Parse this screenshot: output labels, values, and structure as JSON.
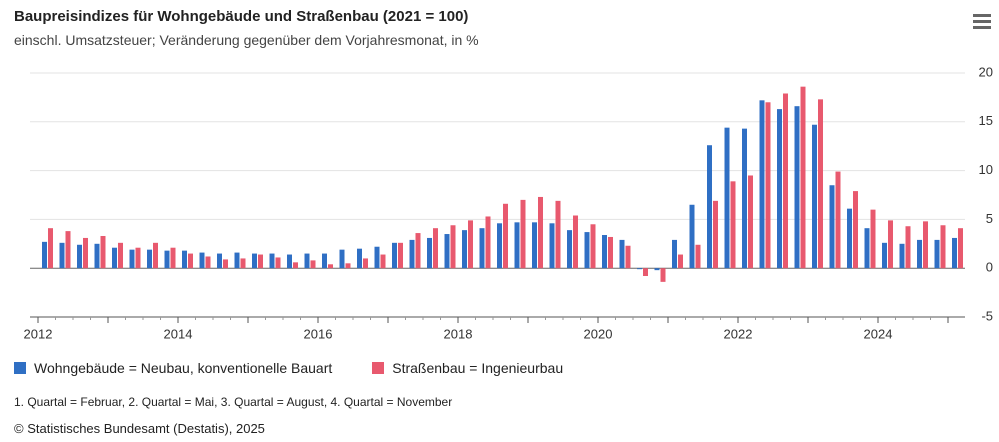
{
  "chart_data": {
    "type": "bar",
    "title": "Baupreisindizes für Wohngebäude und Straßenbau (2021 = 100)",
    "subtitle": "einschl. Umsatzsteuer; Veränderung gegenüber dem Vorjahresmonat, in %",
    "note": "1. Quartal = Februar, 2. Quartal = Mai, 3. Quartal = August, 4. Quartal = November",
    "source": "© Statistisches Bundesamt (Destatis), 2025",
    "categories": [
      "2012",
      null,
      null,
      null,
      null,
      null,
      null,
      null,
      "2014",
      null,
      null,
      null,
      null,
      null,
      null,
      null,
      "2016",
      null,
      null,
      null,
      null,
      null,
      null,
      null,
      "2018",
      null,
      null,
      null,
      null,
      null,
      null,
      null,
      "2020",
      null,
      null,
      null,
      null,
      null,
      null,
      null,
      "2022",
      null,
      null,
      null,
      null,
      null,
      null,
      null,
      "2024",
      null,
      null,
      null,
      null
    ],
    "series": [
      {
        "name": "Wohngebäude = Neubau, konventionelle Bauart",
        "color": "#2f6fc4",
        "values": [
          2.7,
          2.6,
          2.4,
          2.5,
          2.1,
          1.9,
          1.9,
          1.8,
          1.8,
          1.6,
          1.5,
          1.6,
          1.5,
          1.5,
          1.4,
          1.5,
          1.5,
          1.9,
          2.0,
          2.2,
          2.6,
          2.9,
          3.1,
          3.5,
          3.9,
          4.1,
          4.6,
          4.7,
          4.7,
          4.6,
          3.9,
          3.7,
          3.4,
          2.9,
          -0.1,
          -0.2,
          2.9,
          6.5,
          12.6,
          14.4,
          14.3,
          17.2,
          16.3,
          16.6,
          14.7,
          8.5,
          6.1,
          4.1,
          2.6,
          2.5,
          2.9,
          2.9,
          3.1
        ]
      },
      {
        "name": "Straßenbau = Ingenieurbau",
        "color": "#e8596e",
        "values": [
          4.1,
          3.8,
          3.1,
          3.3,
          2.6,
          2.1,
          2.6,
          2.1,
          1.5,
          1.2,
          0.9,
          1.0,
          1.4,
          1.1,
          0.6,
          0.8,
          0.4,
          0.5,
          1.0,
          1.4,
          2.6,
          3.6,
          4.1,
          4.4,
          4.9,
          5.3,
          6.6,
          7.0,
          7.3,
          6.9,
          5.4,
          4.5,
          3.2,
          2.3,
          -0.8,
          -1.4,
          1.4,
          2.4,
          6.9,
          8.9,
          9.5,
          17.0,
          17.9,
          18.6,
          17.3,
          9.9,
          7.9,
          6.0,
          4.9,
          4.3,
          4.8,
          4.4,
          4.1
        ]
      }
    ],
    "ylim": [
      -5,
      20
    ],
    "yticks": [
      -5,
      0,
      5,
      10,
      15,
      20
    ],
    "grid": true,
    "legend": "bottom"
  }
}
